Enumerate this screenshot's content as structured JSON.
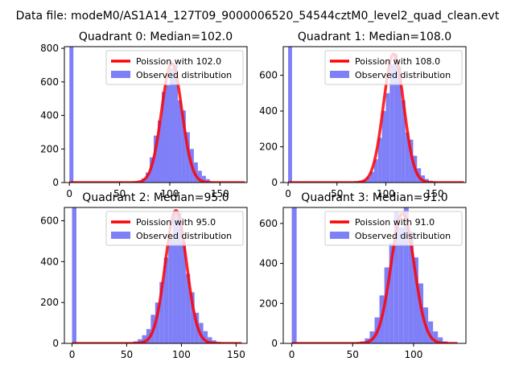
{
  "figure": {
    "suptitle": "Data file: modeM0/AS1A14_127T09_9000006520_54544cztM0_level2_quad_clean.evt"
  },
  "colors": {
    "histogram": "#7f7ff7",
    "poisson": "#ff0000",
    "legend_border": "#cccccc"
  },
  "chart_data": [
    {
      "type": "bar",
      "title": "Quadrant 0: Median=102.0",
      "median": 102.0,
      "xlim": [
        -5,
        177
      ],
      "ylim": [
        0,
        810
      ],
      "xticks": [
        0,
        50,
        100,
        150
      ],
      "yticks": [
        0,
        200,
        400,
        600,
        800
      ],
      "bin_width": 4,
      "bin_starts": [
        0,
        60,
        64,
        68,
        72,
        76,
        80,
        84,
        88,
        92,
        96,
        100,
        104,
        108,
        112,
        116,
        120,
        124,
        128,
        132,
        136,
        140
      ],
      "hist_values": [
        810,
        2,
        4,
        8,
        25,
        60,
        150,
        280,
        370,
        540,
        580,
        680,
        700,
        490,
        430,
        300,
        200,
        120,
        70,
        40,
        20,
        5
      ],
      "poisson_peak": 710,
      "poisson_sigma": 10.1,
      "poisson_xrange": [
        0,
        175
      ],
      "legend": [
        "Poission with 102.0",
        "Observed distribution"
      ]
    },
    {
      "type": "bar",
      "title": "Quadrant 1: Median=108.0",
      "median": 108.0,
      "xlim": [
        -5,
        182
      ],
      "ylim": [
        0,
        760
      ],
      "xticks": [
        0,
        50,
        100,
        150
      ],
      "yticks": [
        0,
        200,
        400,
        600
      ],
      "bin_width": 4,
      "bin_starts": [
        0,
        64,
        68,
        72,
        76,
        80,
        84,
        88,
        92,
        96,
        100,
        104,
        108,
        112,
        116,
        120,
        124,
        128,
        132,
        136,
        140,
        144,
        148
      ],
      "hist_values": [
        760,
        2,
        5,
        10,
        15,
        30,
        60,
        130,
        250,
        400,
        500,
        660,
        720,
        650,
        460,
        280,
        240,
        150,
        80,
        40,
        20,
        10,
        5
      ],
      "poisson_peak": 720,
      "poisson_sigma": 10.4,
      "poisson_xrange": [
        0,
        180
      ],
      "legend": [
        "Poission with 108.0",
        "Observed distribution"
      ]
    },
    {
      "type": "bar",
      "title": "Quadrant 2: Median=95.0",
      "median": 95.0,
      "xlim": [
        -7,
        160
      ],
      "ylim": [
        0,
        665
      ],
      "xticks": [
        0,
        50,
        100,
        150
      ],
      "yticks": [
        0,
        200,
        400,
        600
      ],
      "bin_width": 4,
      "bin_starts": [
        0,
        48,
        52,
        56,
        60,
        64,
        68,
        72,
        76,
        80,
        84,
        88,
        92,
        96,
        100,
        104,
        108,
        112,
        116,
        120,
        124,
        128,
        132,
        136
      ],
      "hist_values": [
        665,
        2,
        5,
        10,
        20,
        40,
        70,
        140,
        200,
        300,
        420,
        520,
        640,
        640,
        500,
        340,
        250,
        150,
        100,
        60,
        30,
        15,
        8,
        3
      ],
      "poisson_peak": 650,
      "poisson_sigma": 9.7,
      "poisson_xrange": [
        0,
        155
      ],
      "legend": [
        "Poission with 95.0",
        "Observed distribution"
      ]
    },
    {
      "type": "bar",
      "title": "Quadrant 3: Median=91.0",
      "median": 91.0,
      "xlim": [
        -7,
        143
      ],
      "ylim": [
        0,
        680
      ],
      "xticks": [
        0,
        50,
        100
      ],
      "yticks": [
        0,
        200,
        400,
        600
      ],
      "bin_width": 4,
      "bin_starts": [
        0,
        52,
        56,
        60,
        64,
        68,
        72,
        76,
        80,
        84,
        88,
        92,
        96,
        100,
        104,
        108,
        112,
        116,
        120,
        124
      ],
      "hist_values": [
        680,
        5,
        10,
        25,
        60,
        130,
        240,
        380,
        500,
        660,
        580,
        680,
        560,
        430,
        300,
        180,
        110,
        60,
        30,
        10
      ],
      "poisson_peak": 650,
      "poisson_sigma": 9.5,
      "poisson_xrange": [
        0,
        136
      ],
      "legend": [
        "Poission with 91.0",
        "Observed distribution"
      ]
    }
  ]
}
